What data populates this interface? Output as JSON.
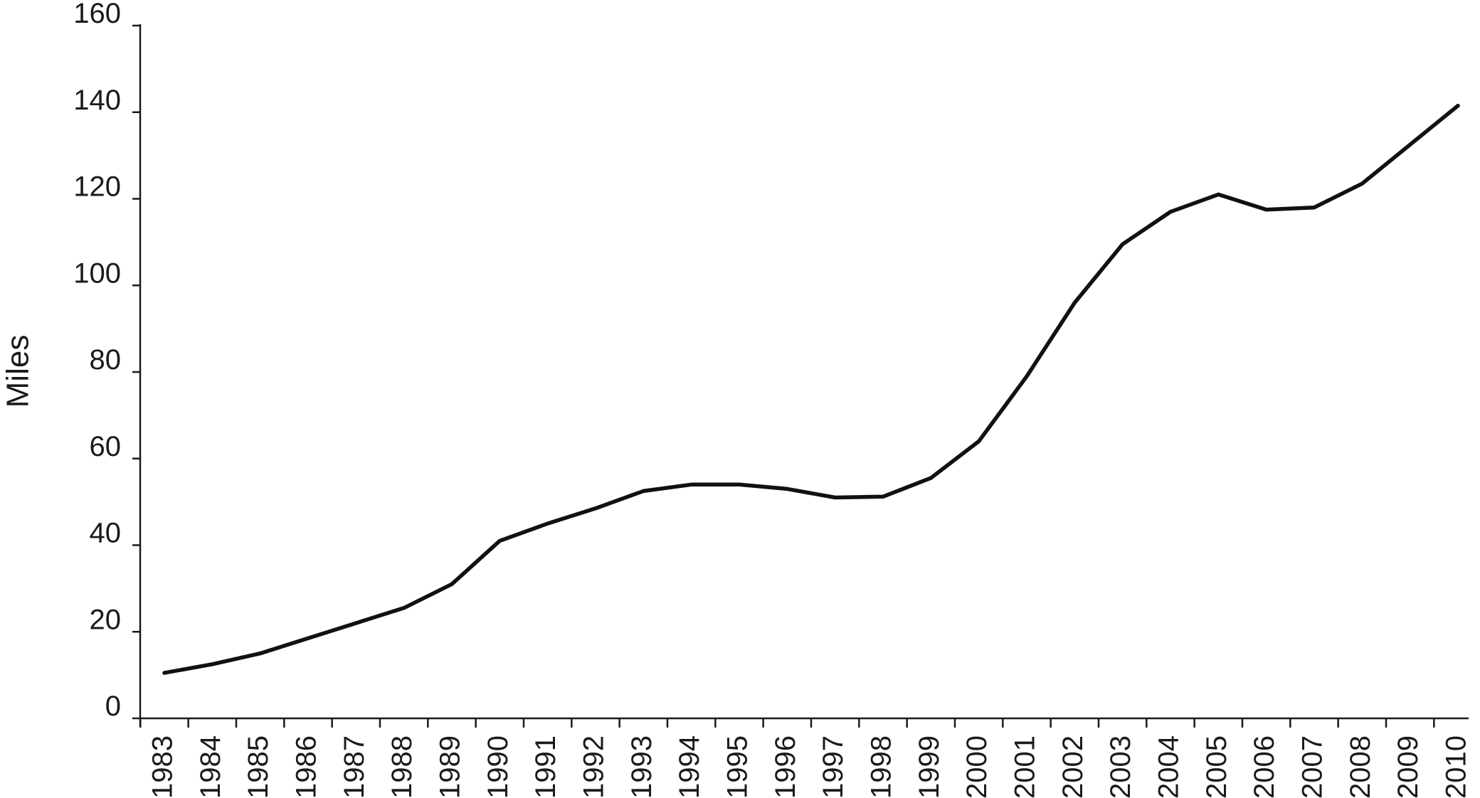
{
  "chart_data": {
    "type": "line",
    "title": "",
    "xlabel": "",
    "ylabel": "Miles",
    "ylim": [
      0,
      160
    ],
    "yticks": [
      0,
      20,
      40,
      60,
      80,
      100,
      120,
      140,
      160
    ],
    "grid": false,
    "legend": "none",
    "line_color": "#111111",
    "categories": [
      "1983",
      "1984",
      "1985",
      "1986",
      "1987",
      "1988",
      "1989",
      "1990",
      "1991",
      "1992",
      "1993",
      "1994",
      "1995",
      "1996",
      "1997",
      "1998",
      "1999",
      "2000",
      "2001",
      "2002",
      "2003",
      "2004",
      "2005",
      "2006",
      "2007",
      "2008",
      "2009",
      "2010"
    ],
    "values": [
      10.5,
      12.5,
      15,
      18.5,
      22,
      25.5,
      31,
      41,
      45,
      48.5,
      52.5,
      54,
      54,
      53,
      51,
      51.2,
      55.5,
      64,
      79,
      96,
      109.5,
      117,
      121,
      117.5,
      118,
      123.5,
      132.5,
      141.5
    ]
  }
}
